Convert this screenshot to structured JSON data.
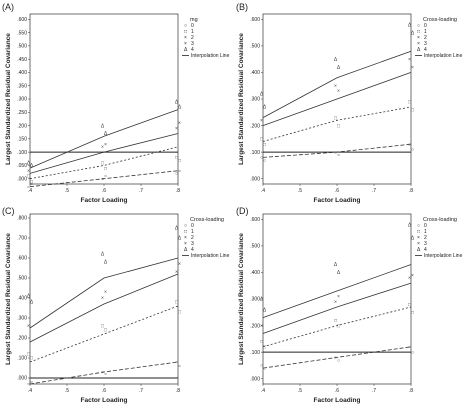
{
  "figure": {
    "chart_data": [
      {
        "type": "scatter",
        "panel_label": "(A)",
        "xlabel": "Factor Loading",
        "ylabel": "Largest Standardized Residual Covariance",
        "xticks": [
          ".4",
          ".5",
          ".6",
          ".7",
          ".8"
        ],
        "yticks": [
          ".000",
          ".050",
          ".100",
          ".150",
          ".200",
          ".250",
          ".300",
          ".350",
          ".400",
          ".450",
          ".500",
          ".550",
          ".600"
        ],
        "xlim": [
          0.4,
          0.8
        ],
        "ylim": [
          -0.02,
          0.62
        ],
        "legend": {
          "title": "mg",
          "entries": [
            "0",
            "1",
            "2",
            "3",
            "4"
          ],
          "line_label": "Interpolation Line",
          "position": "top-right"
        },
        "reference_value": 0.1,
        "series": [
          {
            "marker": "Δ",
            "dash": "",
            "x": [
              0.4,
              0.6,
              0.8
            ],
            "y": [
              0.04,
              0.16,
              0.26
            ],
            "points": [
              [
                0.4,
                0.06
              ],
              [
                0.4,
                0.05
              ],
              [
                0.6,
                0.2
              ],
              [
                0.6,
                0.17
              ],
              [
                0.8,
                0.29
              ],
              [
                0.8,
                0.27
              ]
            ]
          },
          {
            "marker": "×",
            "dash": "",
            "x": [
              0.4,
              0.6,
              0.8
            ],
            "y": [
              0.02,
              0.1,
              0.17
            ],
            "points": [
              [
                0.4,
                0.03
              ],
              [
                0.6,
                0.13
              ],
              [
                0.6,
                0.12
              ],
              [
                0.8,
                0.21
              ],
              [
                0.8,
                0.19
              ]
            ]
          },
          {
            "marker": "□",
            "dash": "2,2",
            "x": [
              0.4,
              0.6,
              0.8
            ],
            "y": [
              0.0,
              0.05,
              0.12
            ],
            "points": [
              [
                0.4,
                0.01
              ],
              [
                0.4,
                -0.01
              ],
              [
                0.6,
                0.06
              ],
              [
                0.6,
                0.04
              ],
              [
                0.8,
                0.08
              ],
              [
                0.8,
                0.07
              ]
            ]
          },
          {
            "marker": "○",
            "dash": "4,2",
            "x": [
              0.4,
              0.6,
              0.8
            ],
            "y": [
              -0.03,
              0.0,
              0.03
            ],
            "points": [
              [
                0.4,
                -0.03
              ],
              [
                0.4,
                -0.02
              ],
              [
                0.6,
                0.0
              ],
              [
                0.6,
                0.01
              ],
              [
                0.8,
                0.02
              ],
              [
                0.8,
                0.03
              ]
            ]
          }
        ]
      },
      {
        "type": "scatter",
        "panel_label": "(B)",
        "xlabel": "Factor Loading",
        "ylabel": "Largest Standardized Residual Covariance",
        "xticks": [
          ".4",
          ".5",
          ".6",
          ".7",
          ".8"
        ],
        "yticks": [
          ".000",
          ".100",
          ".200",
          ".300",
          ".400",
          ".500",
          ".600"
        ],
        "xlim": [
          0.4,
          0.8
        ],
        "ylim": [
          -0.02,
          0.62
        ],
        "legend": {
          "title": "Cross-loading",
          "entries": [
            "0",
            "1",
            "2",
            "3",
            "4"
          ],
          "line_label": "Interpolation Line",
          "position": "top-right"
        },
        "reference_value": 0.1,
        "series": [
          {
            "marker": "Δ",
            "dash": "",
            "x": [
              0.4,
              0.6,
              0.8
            ],
            "y": [
              0.23,
              0.38,
              0.48
            ],
            "points": [
              [
                0.4,
                0.32
              ],
              [
                0.4,
                0.27
              ],
              [
                0.6,
                0.45
              ],
              [
                0.6,
                0.42
              ],
              [
                0.8,
                0.58
              ],
              [
                0.8,
                0.55
              ]
            ]
          },
          {
            "marker": "×",
            "dash": "",
            "x": [
              0.4,
              0.6,
              0.8
            ],
            "y": [
              0.2,
              0.3,
              0.4
            ],
            "points": [
              [
                0.4,
                0.22
              ],
              [
                0.6,
                0.33
              ],
              [
                0.6,
                0.35
              ],
              [
                0.8,
                0.42
              ],
              [
                0.8,
                0.45
              ]
            ]
          },
          {
            "marker": "□",
            "dash": "2,2",
            "x": [
              0.4,
              0.6,
              0.8
            ],
            "y": [
              0.14,
              0.22,
              0.27
            ],
            "points": [
              [
                0.4,
                0.15
              ],
              [
                0.4,
                0.13
              ],
              [
                0.6,
                0.23
              ],
              [
                0.6,
                0.2
              ],
              [
                0.8,
                0.29
              ],
              [
                0.8,
                0.26
              ]
            ]
          },
          {
            "marker": "○",
            "dash": "4,2",
            "x": [
              0.4,
              0.6,
              0.8
            ],
            "y": [
              0.08,
              0.1,
              0.13
            ],
            "points": [
              [
                0.4,
                0.08
              ],
              [
                0.4,
                0.07
              ],
              [
                0.6,
                0.1
              ],
              [
                0.6,
                0.09
              ],
              [
                0.8,
                0.13
              ],
              [
                0.8,
                0.11
              ]
            ]
          }
        ]
      },
      {
        "type": "scatter",
        "panel_label": "(C)",
        "xlabel": "Factor Loading",
        "ylabel": "Largest Standardized Residual Covariance",
        "xticks": [
          ".4",
          ".5",
          ".6",
          ".7",
          ".8"
        ],
        "yticks": [
          ".000",
          ".100",
          ".200",
          ".300",
          ".400",
          ".500",
          ".600",
          ".700",
          ".800"
        ],
        "xlim": [
          0.4,
          0.8
        ],
        "ylim": [
          -0.03,
          0.82
        ],
        "legend": {
          "title": "Cross-loading",
          "entries": [
            "0",
            "1",
            "2",
            "3",
            "4"
          ],
          "line_label": "Interpolation Line",
          "position": "top-right"
        },
        "reference_value": 0.0,
        "series": [
          {
            "marker": "Δ",
            "dash": "",
            "x": [
              0.4,
              0.6,
              0.8
            ],
            "y": [
              0.25,
              0.5,
              0.6
            ],
            "points": [
              [
                0.4,
                0.41
              ],
              [
                0.4,
                0.38
              ],
              [
                0.6,
                0.62
              ],
              [
                0.6,
                0.58
              ],
              [
                0.8,
                0.75
              ],
              [
                0.8,
                0.7
              ]
            ]
          },
          {
            "marker": "×",
            "dash": "",
            "x": [
              0.4,
              0.6,
              0.8
            ],
            "y": [
              0.18,
              0.37,
              0.52
            ],
            "points": [
              [
                0.4,
                0.26
              ],
              [
                0.6,
                0.43
              ],
              [
                0.6,
                0.4
              ],
              [
                0.8,
                0.57
              ],
              [
                0.8,
                0.53
              ]
            ]
          },
          {
            "marker": "□",
            "dash": "2,2",
            "x": [
              0.4,
              0.6,
              0.8
            ],
            "y": [
              0.08,
              0.22,
              0.36
            ],
            "points": [
              [
                0.4,
                0.12
              ],
              [
                0.4,
                0.1
              ],
              [
                0.6,
                0.26
              ],
              [
                0.6,
                0.24
              ],
              [
                0.8,
                0.38
              ],
              [
                0.8,
                0.33
              ]
            ]
          },
          {
            "marker": "○",
            "dash": "4,2",
            "x": [
              0.4,
              0.6,
              0.8
            ],
            "y": [
              -0.03,
              0.03,
              0.08
            ],
            "points": [
              [
                0.4,
                -0.03
              ],
              [
                0.4,
                -0.02
              ],
              [
                0.6,
                0.03
              ],
              [
                0.6,
                0.02
              ],
              [
                0.8,
                0.08
              ],
              [
                0.8,
                0.06
              ]
            ]
          }
        ]
      },
      {
        "type": "scatter",
        "panel_label": "(D)",
        "xlabel": "Factor Loading",
        "ylabel": "Largest Standardized Residual Covariance",
        "xticks": [
          ".4",
          ".5",
          ".6",
          ".7",
          ".8"
        ],
        "yticks": [
          ".000",
          ".100",
          ".200",
          ".300",
          ".400",
          ".500",
          ".600"
        ],
        "xlim": [
          0.4,
          0.8
        ],
        "ylim": [
          -0.02,
          0.62
        ],
        "legend": {
          "title": "Cross-loading",
          "entries": [
            "0",
            "1",
            "2",
            "3",
            "4"
          ],
          "line_label": "Interpolation Line",
          "position": "top-right"
        },
        "reference_value": 0.1,
        "series": [
          {
            "marker": "Δ",
            "dash": "",
            "x": [
              0.4,
              0.6,
              0.8
            ],
            "y": [
              0.23,
              0.33,
              0.43
            ],
            "points": [
              [
                0.4,
                0.3
              ],
              [
                0.4,
                0.26
              ],
              [
                0.6,
                0.43
              ],
              [
                0.6,
                0.4
              ],
              [
                0.8,
                0.58
              ],
              [
                0.8,
                0.53
              ]
            ]
          },
          {
            "marker": "×",
            "dash": "",
            "x": [
              0.4,
              0.6,
              0.8
            ],
            "y": [
              0.17,
              0.27,
              0.36
            ],
            "points": [
              [
                0.4,
                0.2
              ],
              [
                0.6,
                0.31
              ],
              [
                0.6,
                0.29
              ],
              [
                0.8,
                0.39
              ],
              [
                0.8,
                0.38
              ]
            ]
          },
          {
            "marker": "□",
            "dash": "2,2",
            "x": [
              0.4,
              0.6,
              0.8
            ],
            "y": [
              0.12,
              0.2,
              0.27
            ],
            "points": [
              [
                0.4,
                0.14
              ],
              [
                0.4,
                0.12
              ],
              [
                0.6,
                0.22
              ],
              [
                0.6,
                0.2
              ],
              [
                0.8,
                0.28
              ],
              [
                0.8,
                0.25
              ]
            ]
          },
          {
            "marker": "○",
            "dash": "4,2",
            "x": [
              0.4,
              0.6,
              0.8
            ],
            "y": [
              0.04,
              0.08,
              0.12
            ],
            "points": [
              [
                0.4,
                0.05
              ],
              [
                0.4,
                0.04
              ],
              [
                0.6,
                0.08
              ],
              [
                0.6,
                0.07
              ],
              [
                0.8,
                0.12
              ],
              [
                0.8,
                0.1
              ]
            ]
          }
        ]
      }
    ]
  }
}
